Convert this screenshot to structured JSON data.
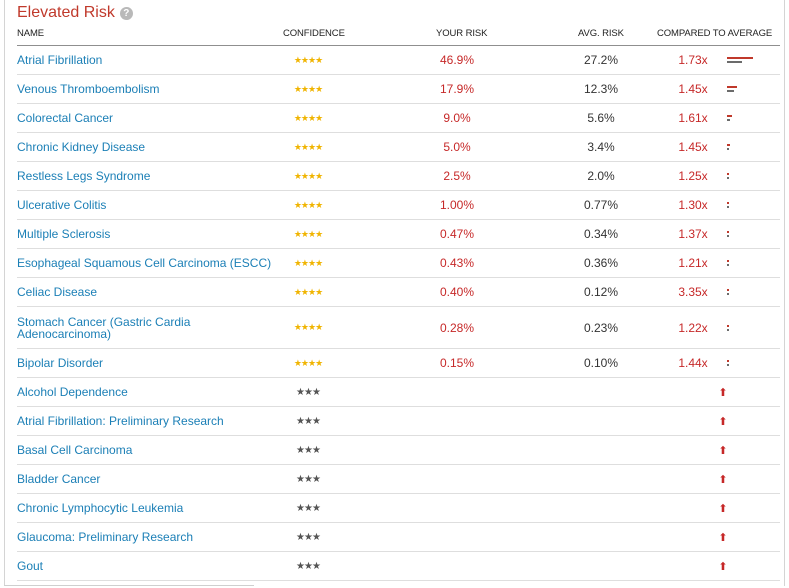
{
  "section": {
    "title": "Elevated Risk",
    "help_icon": "?"
  },
  "columns": {
    "name": "NAME",
    "confidence": "CONFIDENCE",
    "your_risk": "YOUR RISK",
    "avg_risk": "AVG. RISK",
    "compared": "COMPARED TO AVERAGE"
  },
  "colors": {
    "accent_red": "#c62828",
    "link_blue": "#1b7fb6",
    "star_gold": "#f0b400"
  },
  "rows": [
    {
      "name": "Atrial Fibrillation",
      "stars": "★★★★",
      "your": "46.9%",
      "avg": "27.2%",
      "cmp": "1.73x",
      "your_v": 46.9,
      "avg_v": 27.2
    },
    {
      "name": "Venous Thromboembolism",
      "stars": "★★★★",
      "your": "17.9%",
      "avg": "12.3%",
      "cmp": "1.45x",
      "your_v": 17.9,
      "avg_v": 12.3
    },
    {
      "name": "Colorectal Cancer",
      "stars": "★★★★",
      "your": "9.0%",
      "avg": "5.6%",
      "cmp": "1.61x",
      "your_v": 9.0,
      "avg_v": 5.6
    },
    {
      "name": "Chronic Kidney Disease",
      "stars": "★★★★",
      "your": "5.0%",
      "avg": "3.4%",
      "cmp": "1.45x",
      "your_v": 5.0,
      "avg_v": 3.4
    },
    {
      "name": "Restless Legs Syndrome",
      "stars": "★★★★",
      "your": "2.5%",
      "avg": "2.0%",
      "cmp": "1.25x",
      "your_v": 2.5,
      "avg_v": 2.0
    },
    {
      "name": "Ulcerative Colitis",
      "stars": "★★★★",
      "your": "1.00%",
      "avg": "0.77%",
      "cmp": "1.30x",
      "your_v": 1.0,
      "avg_v": 0.77
    },
    {
      "name": "Multiple Sclerosis",
      "stars": "★★★★",
      "your": "0.47%",
      "avg": "0.34%",
      "cmp": "1.37x",
      "your_v": 0.47,
      "avg_v": 0.34
    },
    {
      "name": "Esophageal Squamous Cell Carcinoma (ESCC)",
      "stars": "★★★★",
      "your": "0.43%",
      "avg": "0.36%",
      "cmp": "1.21x",
      "your_v": 0.43,
      "avg_v": 0.36
    },
    {
      "name": "Celiac Disease",
      "stars": "★★★★",
      "your": "0.40%",
      "avg": "0.12%",
      "cmp": "3.35x",
      "your_v": 0.4,
      "avg_v": 0.12
    },
    {
      "name": "Stomach Cancer (Gastric Cardia Adenocarcinoma)",
      "stars": "★★★★",
      "your": "0.28%",
      "avg": "0.23%",
      "cmp": "1.22x",
      "your_v": 0.28,
      "avg_v": 0.23
    },
    {
      "name": "Bipolar Disorder",
      "stars": "★★★★",
      "your": "0.15%",
      "avg": "0.10%",
      "cmp": "1.44x",
      "your_v": 0.15,
      "avg_v": 0.1
    },
    {
      "name": "Alcohol Dependence",
      "stars": "★★★",
      "arrow": "⬆"
    },
    {
      "name": "Atrial Fibrillation: Preliminary Research",
      "stars": "★★★",
      "arrow": "⬆"
    },
    {
      "name": "Basal Cell Carcinoma",
      "stars": "★★★",
      "arrow": "⬆"
    },
    {
      "name": "Bladder Cancer",
      "stars": "★★★",
      "arrow": "⬆"
    },
    {
      "name": "Chronic Lymphocytic Leukemia",
      "stars": "★★★",
      "arrow": "⬆"
    },
    {
      "name": "Glaucoma: Preliminary Research",
      "stars": "★★★",
      "arrow": "⬆"
    },
    {
      "name": "Gout",
      "stars": "★★★",
      "arrow": "⬆"
    }
  ]
}
